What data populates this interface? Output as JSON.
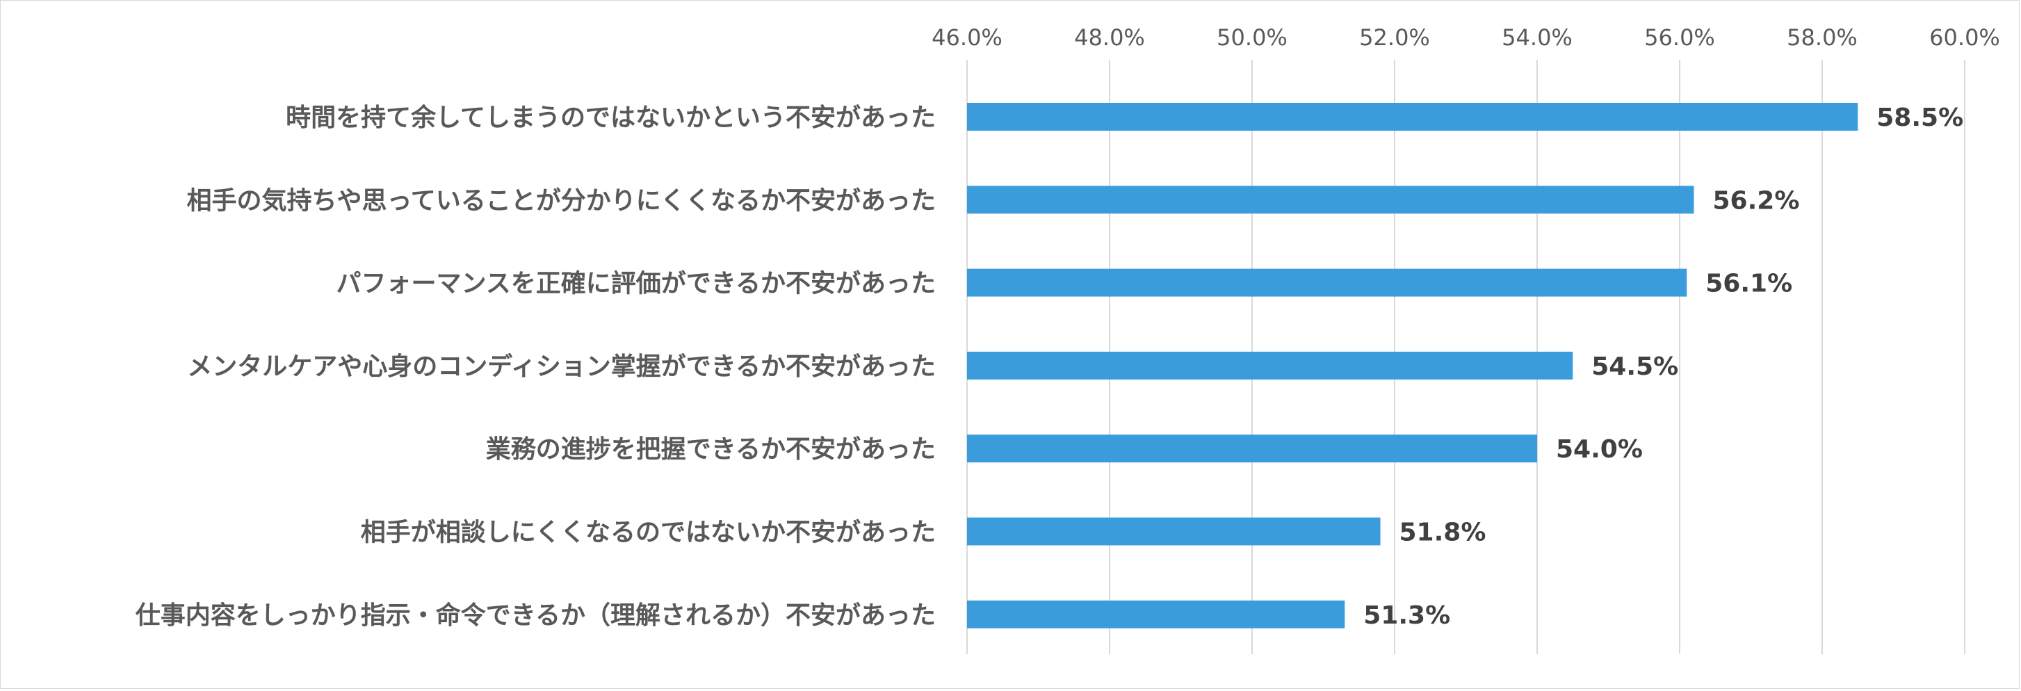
{
  "chart_data": {
    "type": "bar",
    "orientation": "horizontal",
    "title": "",
    "xlabel": "",
    "ylabel": "",
    "xlim": [
      46.0,
      60.0
    ],
    "tick_values": [
      46,
      48,
      50,
      52,
      54,
      56,
      58,
      60
    ],
    "tick_labels": [
      "46.0%",
      "48.0%",
      "50.0%",
      "52.0%",
      "54.0%",
      "56.0%",
      "58.0%",
      "60.0%"
    ],
    "axis_position": "top",
    "grid": true,
    "legend": "none",
    "bar_color": "#3b9cdc",
    "gridline_color": "#d9d9d9",
    "categories": [
      "時間を持て余してしまうのではないかという不安があった",
      "相手の気持ちや思っていることが分かりにくくなるか不安があった",
      "パフォーマンスを正確に評価ができるか不安があった",
      "メンタルケアや心身のコンディション掌握ができるか不安があった",
      "業務の進捗を把握できるか不安があった",
      "相手が相談しにくくなるのではないか不安があった",
      "仕事内容をしっかり指示・命令できるか（理解されるか）不安があった"
    ],
    "values": [
      58.5,
      56.2,
      56.1,
      54.5,
      54.0,
      51.8,
      51.3
    ],
    "data_labels": [
      "58.5%",
      "56.2%",
      "56.1%",
      "54.5%",
      "54.0%",
      "51.8%",
      "51.3%"
    ]
  }
}
